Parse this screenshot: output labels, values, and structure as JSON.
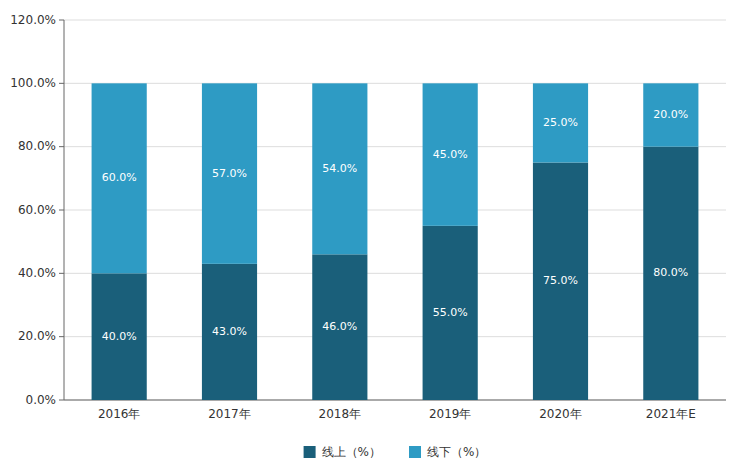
{
  "chart_data": {
    "type": "bar",
    "stacked": true,
    "categories": [
      "2016年",
      "2017年",
      "2018年",
      "2019年",
      "2020年",
      "2021年E"
    ],
    "series": [
      {
        "name": "线上（%）",
        "color": "#1a5f7a",
        "values": [
          40.0,
          43.0,
          46.0,
          55.0,
          75.0,
          80.0
        ],
        "value_labels": [
          "40.0%",
          "43.0%",
          "46.0%",
          "55.0%",
          "75.0%",
          "80.0%"
        ]
      },
      {
        "name": "线下（%）",
        "color": "#2e9bc4",
        "values": [
          60.0,
          57.0,
          54.0,
          45.0,
          25.0,
          20.0
        ],
        "value_labels": [
          "60.0%",
          "57.0%",
          "54.0%",
          "45.0%",
          "25.0%",
          "20.0%"
        ]
      }
    ],
    "ylim": [
      0,
      120
    ],
    "yticks": [
      {
        "value": 0,
        "label": "0.0%"
      },
      {
        "value": 20,
        "label": "20.0%"
      },
      {
        "value": 40,
        "label": "40.0%"
      },
      {
        "value": 60,
        "label": "60.0%"
      },
      {
        "value": 80,
        "label": "80.0%"
      },
      {
        "value": 100,
        "label": "100.0%"
      },
      {
        "value": 120,
        "label": "120.0%"
      }
    ],
    "grid": true,
    "data_labels": true,
    "legend": "bottom"
  }
}
